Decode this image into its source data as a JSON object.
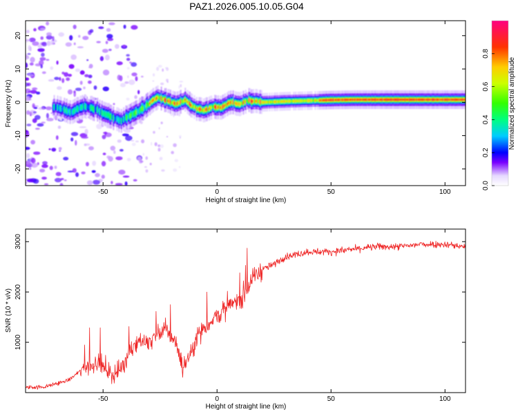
{
  "title": "PAZ1.2026.005.10.05.G04",
  "chart_data": [
    {
      "type": "heatmap",
      "xlabel": "Height of straight line (km)",
      "ylabel": "Frequency (Hz)",
      "xlim": [
        -84,
        109
      ],
      "ylim": [
        -25,
        24.5
      ],
      "xticks": [
        -50,
        0,
        50,
        100
      ],
      "yticks": [
        -20,
        -10,
        0,
        10,
        20
      ],
      "xtick_labels": [
        "-50",
        "0",
        "50",
        "100"
      ],
      "ytick_labels": [
        "-20",
        "-10",
        "0",
        "10",
        "20"
      ],
      "colorbar": {
        "label": "Normalized spectral amplitude",
        "range": [
          0,
          1
        ],
        "ticks": [
          0.0,
          0.2,
          0.4,
          0.6,
          0.8
        ],
        "tick_labels": [
          "0.0",
          "0.2",
          "0.4",
          "0.6",
          "0.8"
        ]
      },
      "ridge_frequency_hz": {
        "x": [
          -70,
          -64,
          -58,
          -52,
          -46,
          -42,
          -38,
          -34,
          -30,
          -26,
          -22,
          -18,
          -14,
          -10,
          -6,
          -2,
          2,
          6,
          10,
          14,
          20,
          30,
          40,
          50,
          60,
          80,
          100,
          109
        ],
        "y": [
          -1.5,
          -3,
          -1,
          -2.5,
          -4.5,
          -5.5,
          -4,
          -2.5,
          -0.5,
          1.5,
          0.5,
          -0.5,
          0.5,
          -1.5,
          -2.5,
          -1.5,
          -1.5,
          0,
          -0.5,
          0.5,
          0,
          0.3,
          0.5,
          0.7,
          0.8,
          0.8,
          0.8,
          0.8
        ]
      }
    },
    {
      "type": "line",
      "xlabel": "Height of straight line (km)",
      "ylabel": "SNR (10 * v/v)",
      "xlim": [
        -84,
        109
      ],
      "ylim": [
        0,
        3250
      ],
      "xticks": [
        -50,
        0,
        50,
        100
      ],
      "yticks": [
        1000,
        2000,
        3000
      ],
      "xtick_labels": [
        "-50",
        "0",
        "50",
        "100"
      ],
      "ytick_labels": [
        "1000",
        "2000",
        "3000"
      ],
      "color": "#ee2222",
      "series": [
        {
          "name": "SNR",
          "x": [
            -84,
            -75,
            -65,
            -58,
            -52,
            -48,
            -45,
            -42,
            -38,
            -34,
            -30,
            -26,
            -22,
            -18,
            -15,
            -12,
            -8,
            -4,
            0,
            4,
            8,
            12,
            16,
            20,
            25,
            30,
            35,
            40,
            50,
            60,
            70,
            80,
            90,
            100,
            109
          ],
          "y": [
            100,
            120,
            250,
            500,
            600,
            450,
            350,
            500,
            850,
            1050,
            1000,
            1150,
            1250,
            1000,
            500,
            750,
            1200,
            1350,
            1550,
            1650,
            1800,
            1950,
            2300,
            2450,
            2550,
            2700,
            2750,
            2800,
            2800,
            2850,
            2900,
            2900,
            2950,
            2950,
            2900
          ]
        }
      ]
    }
  ]
}
